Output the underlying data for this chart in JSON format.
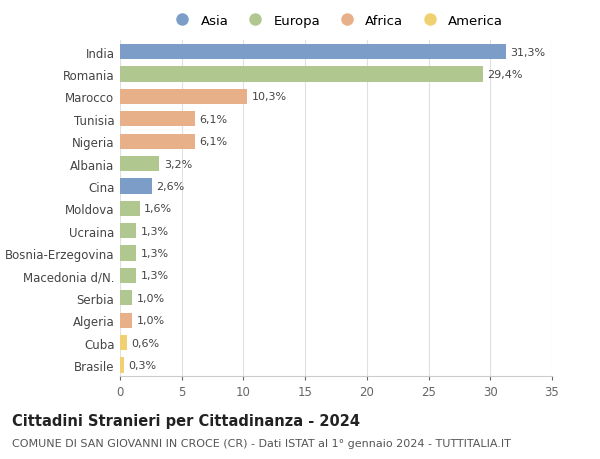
{
  "countries": [
    "India",
    "Romania",
    "Marocco",
    "Tunisia",
    "Nigeria",
    "Albania",
    "Cina",
    "Moldova",
    "Ucraina",
    "Bosnia-Erzegovina",
    "Macedonia d/N.",
    "Serbia",
    "Algeria",
    "Cuba",
    "Brasile"
  ],
  "values": [
    31.3,
    29.4,
    10.3,
    6.1,
    6.1,
    3.2,
    2.6,
    1.6,
    1.3,
    1.3,
    1.3,
    1.0,
    1.0,
    0.6,
    0.3
  ],
  "labels": [
    "31,3%",
    "29,4%",
    "10,3%",
    "6,1%",
    "6,1%",
    "3,2%",
    "2,6%",
    "1,6%",
    "1,3%",
    "1,3%",
    "1,3%",
    "1,0%",
    "1,0%",
    "0,6%",
    "0,3%"
  ],
  "continents": [
    "Asia",
    "Europa",
    "Africa",
    "Africa",
    "Africa",
    "Europa",
    "Asia",
    "Europa",
    "Europa",
    "Europa",
    "Europa",
    "Europa",
    "Africa",
    "America",
    "America"
  ],
  "colors": {
    "Asia": "#7b9dc8",
    "Europa": "#b0c890",
    "Africa": "#e8b088",
    "America": "#f0d070"
  },
  "legend_order": [
    "Asia",
    "Europa",
    "Africa",
    "America"
  ],
  "title": "Cittadini Stranieri per Cittadinanza - 2024",
  "subtitle": "COMUNE DI SAN GIOVANNI IN CROCE (CR) - Dati ISTAT al 1° gennaio 2024 - TUTTITALIA.IT",
  "xlim": [
    0,
    35
  ],
  "xticks": [
    0,
    5,
    10,
    15,
    20,
    25,
    30,
    35
  ],
  "background_color": "#ffffff",
  "grid_color": "#e0e0e0",
  "bar_height": 0.68,
  "title_fontsize": 10.5,
  "subtitle_fontsize": 8,
  "tick_fontsize": 8.5,
  "label_fontsize": 8,
  "legend_fontsize": 9.5
}
